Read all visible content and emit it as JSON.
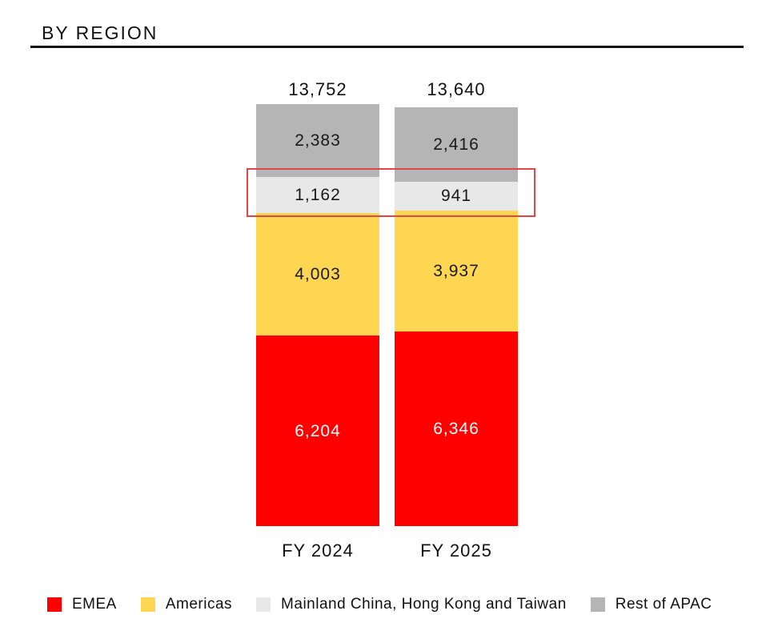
{
  "header": {
    "title": "BY REGION"
  },
  "chart_data": {
    "type": "stacked-bar",
    "title": "BY REGION",
    "categories": [
      "FY 2024",
      "FY 2025"
    ],
    "series": [
      {
        "name": "EMEA",
        "color": "#ff0000",
        "label_color": "#ffffff",
        "values": [
          6204,
          6346
        ]
      },
      {
        "name": "Americas",
        "color": "#ffd651",
        "label_color": "#1a1a1a",
        "values": [
          4003,
          3937
        ]
      },
      {
        "name": "Mainland China, Hong Kong and Taiwan",
        "color": "#e8e8e8",
        "label_color": "#1a1a1a",
        "values": [
          1162,
          941
        ]
      },
      {
        "name": "Rest of APAC",
        "color": "#b5b5b5",
        "label_color": "#1a1a1a",
        "values": [
          2383,
          2416
        ]
      }
    ],
    "totals": [
      13752,
      13640
    ],
    "totals_display": [
      "13,752",
      "13,640"
    ],
    "segment_labels_display": {
      "EMEA": [
        "6,204",
        "6,346"
      ],
      "Americas": [
        "4,003",
        "3,937"
      ],
      "Mainland China, Hong Kong and Taiwan": [
        "1,162",
        "941"
      ],
      "Rest of APAC": [
        "2,383",
        "2,416"
      ]
    },
    "highlight": {
      "series": "Mainland China, Hong Kong and Taiwan",
      "color": "#e04646"
    },
    "legend_position": "bottom",
    "grid": false,
    "axes_hidden": true
  }
}
